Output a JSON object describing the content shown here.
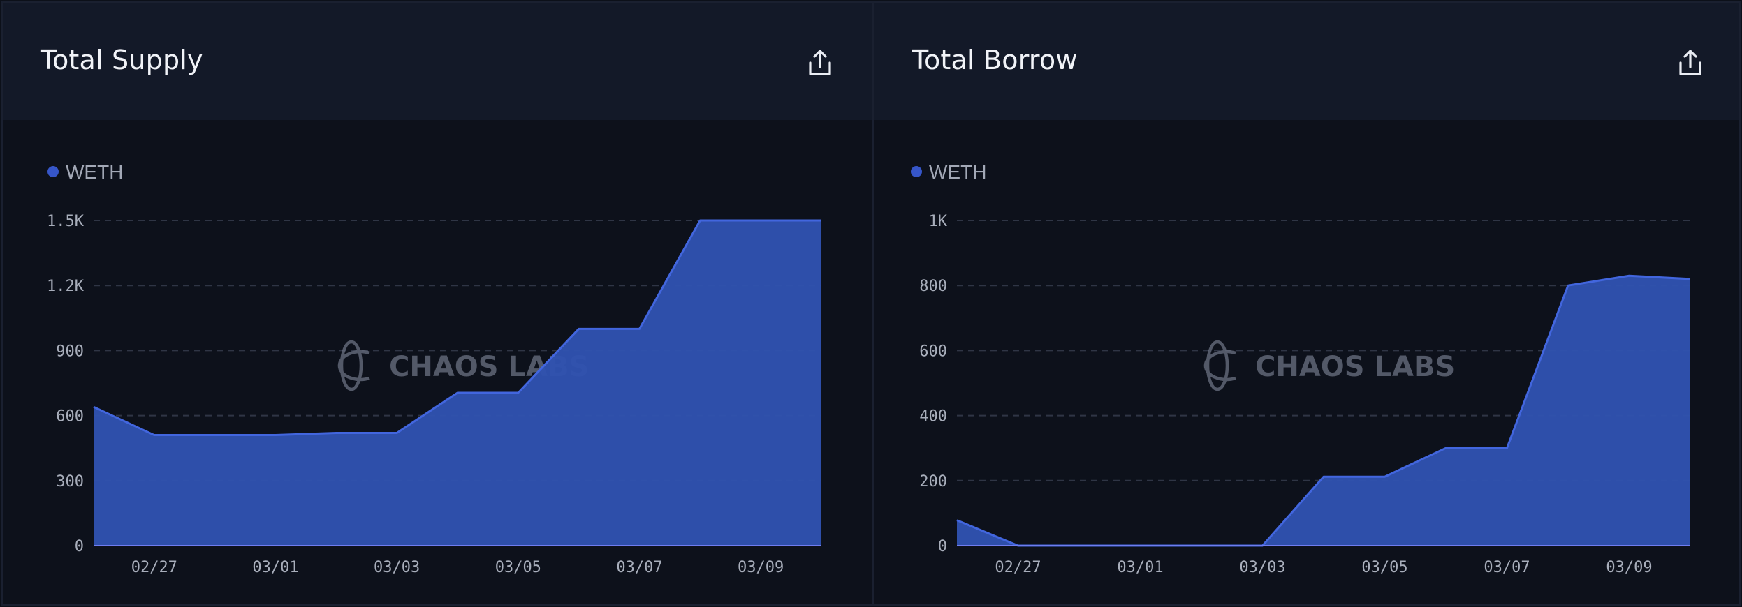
{
  "panels": [
    {
      "title": "Total Supply",
      "export_icon": "share-export-icon"
    },
    {
      "title": "Total Borrow",
      "export_icon": "share-export-icon"
    }
  ],
  "watermark": {
    "text": "CHAOS LABS",
    "icon": "chaos-labs-logo-icon"
  },
  "colors": {
    "series": "#3656c9",
    "series_fill": "#3052b0",
    "grid": "#2f3545"
  },
  "chart_data": [
    {
      "type": "area",
      "title": "Total Supply",
      "series": [
        {
          "name": "WETH",
          "values": [
            640,
            510,
            510,
            510,
            520,
            520,
            705,
            705,
            1000,
            1000,
            1500,
            1500,
            1500
          ]
        }
      ],
      "x": [
        "02/26",
        "02/27",
        "02/28",
        "03/01",
        "03/02",
        "03/03",
        "03/04",
        "03/05",
        "03/06",
        "03/07",
        "03/08",
        "03/09",
        "03/10"
      ],
      "x_tick_labels": [
        "02/27",
        "03/01",
        "03/03",
        "03/05",
        "03/07",
        "03/09"
      ],
      "y_ticks": [
        0,
        300,
        600,
        900,
        1200,
        1500
      ],
      "y_tick_labels": [
        "0",
        "300",
        "600",
        "900",
        "1.2K",
        "1.5K"
      ],
      "ylim": [
        0,
        1500
      ],
      "grid": true,
      "legend": "top-left"
    },
    {
      "type": "area",
      "title": "Total Borrow",
      "series": [
        {
          "name": "WETH",
          "values": [
            78,
            0,
            0,
            0,
            0,
            0,
            212,
            212,
            300,
            300,
            800,
            830,
            820
          ]
        }
      ],
      "x": [
        "02/26",
        "02/27",
        "02/28",
        "03/01",
        "03/02",
        "03/03",
        "03/04",
        "03/05",
        "03/06",
        "03/07",
        "03/08",
        "03/09",
        "03/10"
      ],
      "x_tick_labels": [
        "02/27",
        "03/01",
        "03/03",
        "03/05",
        "03/07",
        "03/09"
      ],
      "y_ticks": [
        0,
        200,
        400,
        600,
        800,
        1000
      ],
      "y_tick_labels": [
        "0",
        "200",
        "400",
        "600",
        "800",
        "1K"
      ],
      "ylim": [
        0,
        1000
      ],
      "grid": true,
      "legend": "top-left"
    }
  ]
}
